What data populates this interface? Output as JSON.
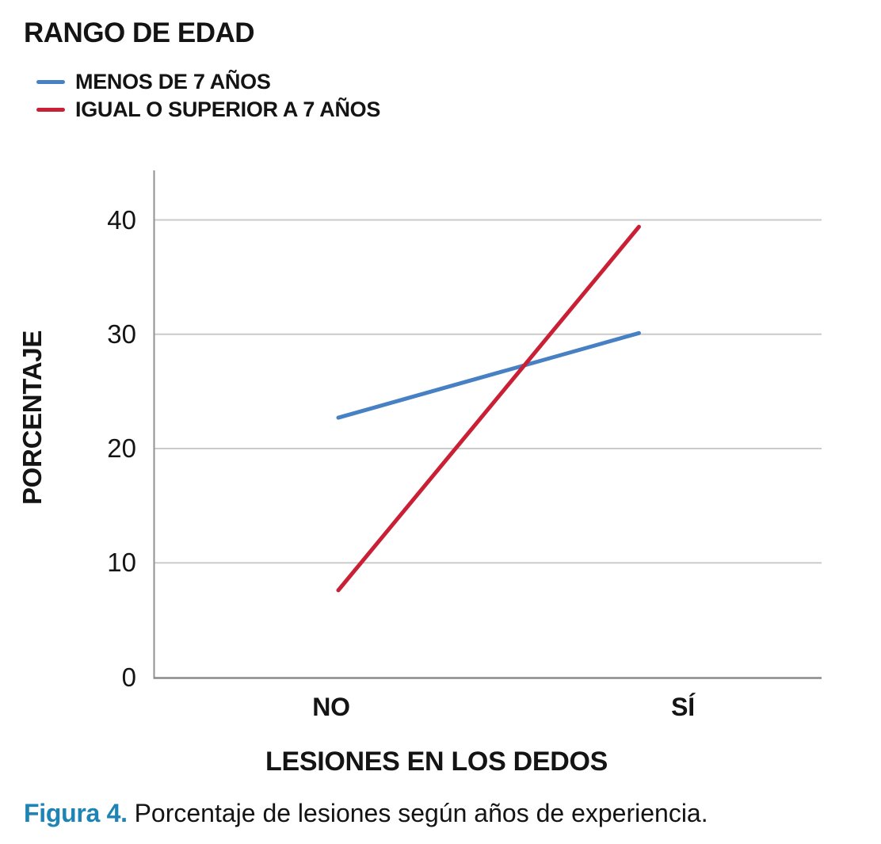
{
  "legend": {
    "title": "RANGO DE EDAD",
    "items": [
      {
        "label": "MENOS DE 7 AÑOS",
        "color": "#4781c3"
      },
      {
        "label": "IGUAL O SUPERIOR A 7 AÑOS",
        "color": "#c92035"
      }
    ]
  },
  "chart_data": {
    "type": "line",
    "title": "RANGO DE EDAD",
    "categories": [
      "NO",
      "SÍ"
    ],
    "series": [
      {
        "name": "MENOS DE 7 AÑOS",
        "color": "#4781c3",
        "values": [
          22.7,
          30.1
        ]
      },
      {
        "name": "IGUAL O SUPERIOR A 7 AÑOS",
        "color": "#c92035",
        "values": [
          7.6,
          39.4
        ]
      }
    ],
    "xlabel": "LESIONES EN LOS DEDOS",
    "ylabel": "PORCENTAJE",
    "ylim": [
      0,
      44
    ],
    "y_ticks": [
      0,
      10,
      20,
      30,
      40
    ],
    "grid": true,
    "legend_position": "top-left"
  },
  "caption": {
    "label": "Figura 4.",
    "label_color": "#1e83b5",
    "text": "Porcentaje de lesiones según años de experiencia."
  }
}
